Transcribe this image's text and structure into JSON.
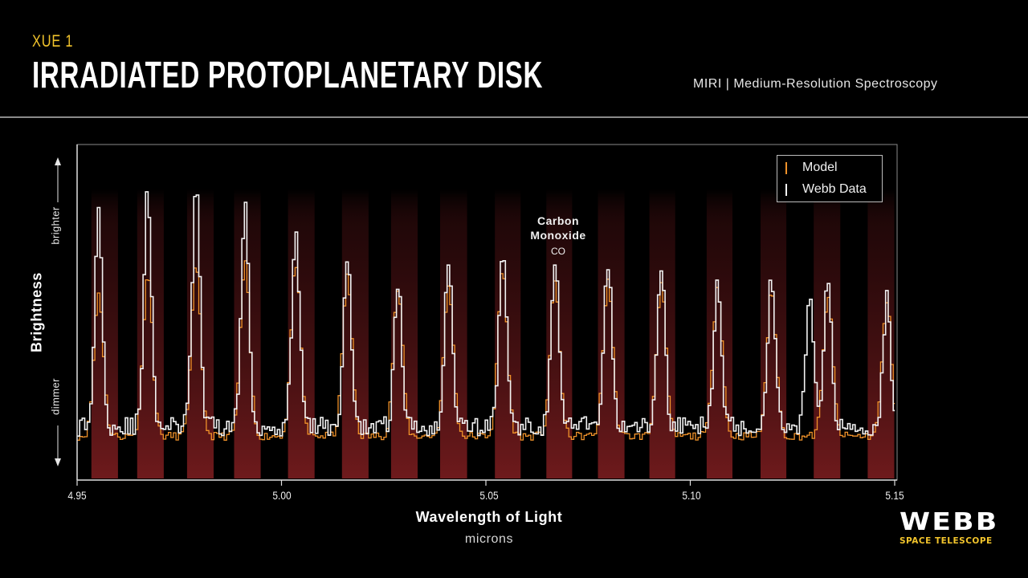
{
  "header": {
    "subtitle": "XUE 1",
    "title": "IRRADIATED PROTOPLANETARY DISK",
    "instrument": "MIRI | Medium-Resolution Spectroscopy"
  },
  "legend": {
    "items": [
      {
        "label": "Model",
        "color": "#f0922a"
      },
      {
        "label": "Webb Data",
        "color": "#f2f2f2"
      }
    ]
  },
  "annotation": {
    "name_line1": "Carbon",
    "name_line2": "Monoxide",
    "formula": "CO"
  },
  "axes": {
    "xlabel": "Wavelength of Light",
    "xunit": "microns",
    "ylabel": "Brightness",
    "y_high": "brighter",
    "y_low": "dimmer",
    "xticks": [
      "4.95",
      "5.00",
      "5.05",
      "5.10",
      "5.15"
    ]
  },
  "logo": {
    "word": "WEBB",
    "sub": "SPACE TELESCOPE"
  },
  "colors": {
    "background": "#000000",
    "accent_yellow": "#f2c42c",
    "model": "#f0922a",
    "data": "#f2f2f2",
    "band": "#6e1a1c"
  },
  "chart_data": {
    "type": "line",
    "title": "Irradiated Protoplanetary Disk — XUE 1",
    "subtitle": "MIRI | Medium-Resolution Spectroscopy",
    "xlabel": "Wavelength of Light (microns)",
    "ylabel": "Brightness (dimmer → brighter, relative)",
    "xlim": [
      4.95,
      5.15
    ],
    "ylim": [
      0,
      1
    ],
    "xticks": [
      4.95,
      5.0,
      5.05,
      5.1,
      5.15
    ],
    "grid": false,
    "legend_position": "upper right",
    "annotation": "Carbon Monoxide (CO)",
    "co_bands_microns": [
      [
        4.9535,
        4.96
      ],
      [
        4.9647,
        4.9712
      ],
      [
        4.9769,
        4.9834
      ],
      [
        4.9884,
        4.9949
      ],
      [
        5.0016,
        5.0081
      ],
      [
        5.0148,
        5.0213
      ],
      [
        5.0268,
        5.0333
      ],
      [
        5.0388,
        5.0454
      ],
      [
        5.0522,
        5.0585
      ],
      [
        5.0648,
        5.0711
      ],
      [
        5.0774,
        5.0839
      ],
      [
        5.09,
        5.0963
      ],
      [
        5.104,
        5.1103
      ],
      [
        5.1172,
        5.1235
      ],
      [
        5.1302,
        5.1367
      ],
      [
        5.1434,
        5.1499
      ]
    ],
    "series": [
      {
        "name": "Webb Data",
        "color": "#f2f2f2",
        "peaks": [
          {
            "x": 4.955,
            "y": 0.82
          },
          {
            "x": 4.967,
            "y": 0.88
          },
          {
            "x": 4.9788,
            "y": 0.91
          },
          {
            "x": 4.9908,
            "y": 0.84
          },
          {
            "x": 5.0032,
            "y": 0.77
          },
          {
            "x": 5.0158,
            "y": 0.68
          },
          {
            "x": 5.0282,
            "y": 0.6
          },
          {
            "x": 5.0406,
            "y": 0.68
          },
          {
            "x": 5.0538,
            "y": 0.71
          },
          {
            "x": 5.0666,
            "y": 0.67
          },
          {
            "x": 5.0796,
            "y": 0.67
          },
          {
            "x": 5.0926,
            "y": 0.66
          },
          {
            "x": 5.1064,
            "y": 0.62
          },
          {
            "x": 5.1196,
            "y": 0.62
          },
          {
            "x": 5.129,
            "y": 0.58
          },
          {
            "x": 5.1334,
            "y": 0.61
          },
          {
            "x": 5.1478,
            "y": 0.55
          }
        ],
        "baseline": 0.16
      },
      {
        "name": "Model",
        "color": "#f0922a",
        "peaks": [
          {
            "x": 4.955,
            "y": 0.57
          },
          {
            "x": 4.967,
            "y": 0.63
          },
          {
            "x": 4.9788,
            "y": 0.65
          },
          {
            "x": 4.9908,
            "y": 0.66
          },
          {
            "x": 5.0032,
            "y": 0.66
          },
          {
            "x": 5.0158,
            "y": 0.62
          },
          {
            "x": 5.0282,
            "y": 0.58
          },
          {
            "x": 5.0406,
            "y": 0.59
          },
          {
            "x": 5.0538,
            "y": 0.64
          },
          {
            "x": 5.0666,
            "y": 0.6
          },
          {
            "x": 5.0796,
            "y": 0.61
          },
          {
            "x": 5.0926,
            "y": 0.6
          },
          {
            "x": 5.1064,
            "y": 0.59
          },
          {
            "x": 5.1196,
            "y": 0.57
          },
          {
            "x": 5.1334,
            "y": 0.56
          },
          {
            "x": 5.1478,
            "y": 0.54
          }
        ],
        "baseline": 0.13
      }
    ]
  }
}
